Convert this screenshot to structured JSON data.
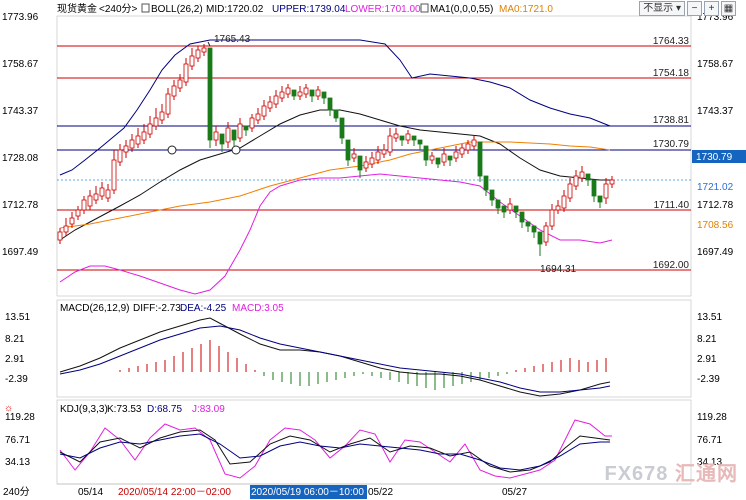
{
  "header": {
    "instrument": "现货黄金",
    "period": "<240分>",
    "boll_label": "BOLL(26,2)",
    "mid": "MID:1720.02",
    "upper": "UPPER:1739.04",
    "lower": "LOWER:1701.00",
    "ma_label": "MA1(0,0,0,55)",
    "ma0": "MA0:1721.0"
  },
  "toolbar": {
    "hide_label": "不显示",
    "minus": "−",
    "plus": "+",
    "grid": "▦"
  },
  "price_axis": [
    "1773.96",
    "1758.67",
    "1743.37",
    "1728.08",
    "1712.78",
    "1697.49"
  ],
  "lines": [
    {
      "value": "1764.33",
      "color": "#cc0000"
    },
    {
      "value": "1754.18",
      "color": "#cc0000"
    },
    {
      "value": "1738.81",
      "color": "#000080"
    },
    {
      "value": "1730.79",
      "color": "#000080"
    },
    {
      "value": "1711.40",
      "color": "#cc0000"
    },
    {
      "value": "1692.00",
      "color": "#cc0000"
    }
  ],
  "current_price_tag": "1730.79",
  "last_price": "1721.02",
  "ma_value": "1708.56",
  "high_marker": "1765.43",
  "low_marker": "1694.31",
  "macd": {
    "label": "MACD(26,12,9)",
    "diff": "DIFF:-2.73",
    "dea": "DEA:-4.25",
    "macd": "MACD:3.05",
    "axis": [
      "13.51",
      "8.21",
      "2.91",
      "-2.39"
    ]
  },
  "kdj": {
    "label": "KDJ(9,3,3)",
    "k": "K:73.53",
    "d": "D:68.75",
    "j": "J:83.09",
    "axis": [
      "119.28",
      "76.71",
      "34.13"
    ]
  },
  "x_axis": {
    "period": "240分",
    "labels": [
      "05/14",
      "05/22",
      "05/27"
    ],
    "crosshair_time": "2020/05/14 22:00－02:00",
    "crosshair_time2": "2020/05/19 06:00－10:00 二"
  },
  "watermark": {
    "fx": "FX678",
    "cn": "汇通网"
  },
  "colors": {
    "up": "#cc0000",
    "down": "#1a7a1a",
    "upper_band": "#000080",
    "lower_band": "#e020e0",
    "ma55": "#f08000"
  }
}
